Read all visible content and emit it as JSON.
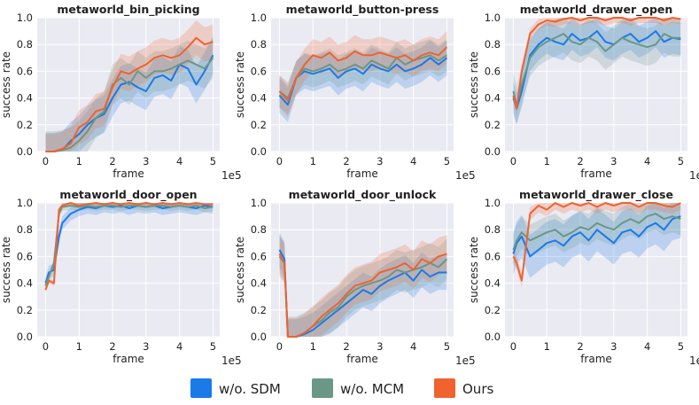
{
  "legend": [
    {
      "name": "w/o. SDM",
      "color": "#1a7ae8"
    },
    {
      "name": "w/o. MCM",
      "color": "#6b9787"
    },
    {
      "name": "Ours",
      "color": "#f0622e"
    }
  ],
  "chart_data": [
    {
      "type": "line",
      "title": "metaworld_bin_picking",
      "xlabel": "frame",
      "ylabel": "success rate",
      "x_multiplier_label": "1e5",
      "xlim": [
        -0.25,
        5.2
      ],
      "ylim": [
        0,
        1.0
      ],
      "xticks": [
        "0",
        "1",
        "2",
        "3",
        "4",
        "5"
      ],
      "yticks": [
        "0.0",
        "0.2",
        "0.4",
        "0.6",
        "0.8",
        "1.0"
      ],
      "x": [
        0,
        0.25,
        0.5,
        0.75,
        1,
        1.25,
        1.5,
        1.75,
        2,
        2.25,
        2.5,
        2.75,
        3,
        3.25,
        3.5,
        3.75,
        4,
        4.25,
        4.5,
        4.75,
        5
      ],
      "series": [
        {
          "name": "w/o. SDM",
          "values": [
            0,
            0,
            0.01,
            0.08,
            0.13,
            0.2,
            0.25,
            0.28,
            0.4,
            0.5,
            0.52,
            0.48,
            0.45,
            0.55,
            0.57,
            0.53,
            0.65,
            0.62,
            0.5,
            0.6,
            0.72
          ],
          "band": 0.14
        },
        {
          "name": "w/o. MCM",
          "values": [
            0,
            0,
            0.01,
            0.03,
            0.08,
            0.15,
            0.25,
            0.3,
            0.5,
            0.55,
            0.5,
            0.6,
            0.55,
            0.6,
            0.6,
            0.62,
            0.65,
            0.68,
            0.65,
            0.62,
            0.7
          ],
          "band": 0.15
        },
        {
          "name": "Ours",
          "values": [
            0,
            0,
            0.02,
            0.06,
            0.18,
            0.22,
            0.3,
            0.32,
            0.48,
            0.6,
            0.58,
            0.62,
            0.65,
            0.7,
            0.72,
            0.7,
            0.72,
            0.78,
            0.85,
            0.8,
            0.82
          ],
          "band": 0.13
        }
      ]
    },
    {
      "type": "line",
      "title": "metaworld_button-press",
      "xlabel": "frame",
      "ylabel": "success rate",
      "x_multiplier_label": "1e5",
      "xlim": [
        -0.25,
        5.2
      ],
      "ylim": [
        0,
        1.0
      ],
      "xticks": [
        "0",
        "1",
        "2",
        "3",
        "4",
        "5"
      ],
      "yticks": [
        "0.0",
        "0.2",
        "0.4",
        "0.6",
        "0.8",
        "1.0"
      ],
      "x": [
        0,
        0.25,
        0.5,
        0.75,
        1,
        1.25,
        1.5,
        1.75,
        2,
        2.25,
        2.5,
        2.75,
        3,
        3.25,
        3.5,
        3.75,
        4,
        4.25,
        4.5,
        4.75,
        5
      ],
      "series": [
        {
          "name": "w/o. SDM",
          "values": [
            0.42,
            0.35,
            0.55,
            0.6,
            0.58,
            0.6,
            0.62,
            0.55,
            0.6,
            0.62,
            0.58,
            0.65,
            0.62,
            0.6,
            0.65,
            0.6,
            0.62,
            0.65,
            0.7,
            0.65,
            0.7
          ],
          "band": 0.13
        },
        {
          "name": "w/o. MCM",
          "values": [
            0.45,
            0.4,
            0.55,
            0.62,
            0.6,
            0.62,
            0.65,
            0.6,
            0.62,
            0.65,
            0.62,
            0.68,
            0.65,
            0.62,
            0.7,
            0.65,
            0.68,
            0.7,
            0.72,
            0.68,
            0.72
          ],
          "band": 0.12
        },
        {
          "name": "Ours",
          "values": [
            0.45,
            0.38,
            0.55,
            0.65,
            0.72,
            0.7,
            0.74,
            0.68,
            0.7,
            0.75,
            0.72,
            0.72,
            0.74,
            0.72,
            0.7,
            0.72,
            0.68,
            0.72,
            0.74,
            0.72,
            0.78
          ],
          "band": 0.12
        }
      ]
    },
    {
      "type": "line",
      "title": "metaworld_drawer_open",
      "xlabel": "frame",
      "ylabel": "success rate",
      "x_multiplier_label": "1e5",
      "xlim": [
        -0.25,
        5.2
      ],
      "ylim": [
        0,
        1.0
      ],
      "xticks": [
        "0",
        "1",
        "2",
        "3",
        "4",
        "5"
      ],
      "yticks": [
        "0.0",
        "0.2",
        "0.4",
        "0.6",
        "0.8",
        "1.0"
      ],
      "x": [
        0,
        0.1,
        0.25,
        0.5,
        0.75,
        1,
        1.25,
        1.5,
        1.75,
        2,
        2.25,
        2.5,
        2.75,
        3,
        3.25,
        3.5,
        3.75,
        4,
        4.25,
        4.5,
        4.75,
        5
      ],
      "series": [
        {
          "name": "w/o. SDM",
          "values": [
            0.4,
            0.32,
            0.45,
            0.72,
            0.8,
            0.85,
            0.82,
            0.8,
            0.88,
            0.83,
            0.85,
            0.9,
            0.82,
            0.8,
            0.85,
            0.88,
            0.82,
            0.85,
            0.9,
            0.82,
            0.85,
            0.84
          ],
          "band": 0.12
        },
        {
          "name": "w/o. MCM",
          "values": [
            0.45,
            0.35,
            0.5,
            0.7,
            0.78,
            0.82,
            0.85,
            0.88,
            0.82,
            0.8,
            0.85,
            0.82,
            0.75,
            0.8,
            0.85,
            0.82,
            0.8,
            0.78,
            0.8,
            0.88,
            0.85,
            0.85
          ],
          "band": 0.14
        },
        {
          "name": "Ours",
          "values": [
            0.42,
            0.32,
            0.6,
            0.88,
            0.95,
            0.98,
            0.97,
            0.99,
            1.0,
            0.98,
            1.0,
            1.0,
            0.98,
            1.0,
            1.0,
            0.98,
            1.0,
            1.0,
            1.0,
            0.98,
            1.0,
            0.99
          ],
          "band": 0.04
        }
      ]
    },
    {
      "type": "line",
      "title": "metaworld_door_open",
      "xlabel": "frame",
      "ylabel": "success rate",
      "x_multiplier_label": "1e5",
      "xlim": [
        -0.25,
        5.2
      ],
      "ylim": [
        0,
        1.0
      ],
      "xticks": [
        "0",
        "1",
        "2",
        "3",
        "4",
        "5"
      ],
      "yticks": [
        "0.0",
        "0.2",
        "0.4",
        "0.6",
        "0.8",
        "1.0"
      ],
      "x": [
        0,
        0.1,
        0.25,
        0.4,
        0.5,
        0.75,
        1,
        1.25,
        1.5,
        1.75,
        2,
        2.25,
        2.5,
        2.75,
        3,
        3.25,
        3.5,
        3.75,
        4,
        4.25,
        4.5,
        4.75,
        5
      ],
      "series": [
        {
          "name": "w/o. SDM",
          "values": [
            0.4,
            0.48,
            0.5,
            0.75,
            0.85,
            0.92,
            0.95,
            0.97,
            0.96,
            0.98,
            0.97,
            0.98,
            0.96,
            0.98,
            0.97,
            0.98,
            0.96,
            0.97,
            0.98,
            0.97,
            0.96,
            0.98,
            0.97
          ],
          "band": 0.05
        },
        {
          "name": "w/o. MCM",
          "values": [
            0.38,
            0.45,
            0.55,
            0.92,
            0.97,
            0.98,
            0.97,
            0.98,
            0.97,
            0.98,
            0.98,
            0.97,
            0.98,
            0.98,
            0.97,
            0.98,
            0.98,
            0.97,
            0.98,
            0.97,
            0.98,
            0.96,
            0.97
          ],
          "band": 0.03
        },
        {
          "name": "Ours",
          "values": [
            0.35,
            0.42,
            0.4,
            0.95,
            0.98,
            1.0,
            0.98,
            0.99,
            1.0,
            0.99,
            1.0,
            0.99,
            1.0,
            0.99,
            1.0,
            0.99,
            1.0,
            0.99,
            1.0,
            0.99,
            1.0,
            0.99,
            0.99
          ],
          "band": 0.02
        }
      ]
    },
    {
      "type": "line",
      "title": "metaworld_door_unlock",
      "xlabel": "frame",
      "ylabel": "success rate",
      "x_multiplier_label": "1e5",
      "xlim": [
        -0.25,
        5.2
      ],
      "ylim": [
        0,
        1.0
      ],
      "xticks": [
        "0",
        "1",
        "2",
        "3",
        "4",
        "5"
      ],
      "yticks": [
        "0.0",
        "0.2",
        "0.4",
        "0.6",
        "0.8",
        "1.0"
      ],
      "x": [
        0,
        0.15,
        0.25,
        0.5,
        0.75,
        1,
        1.25,
        1.5,
        1.75,
        2,
        2.25,
        2.5,
        2.75,
        3,
        3.25,
        3.5,
        3.75,
        4,
        4.25,
        4.5,
        4.75,
        5
      ],
      "series": [
        {
          "name": "w/o. SDM",
          "values": [
            0.65,
            0.58,
            0,
            0,
            0.02,
            0.05,
            0.1,
            0.15,
            0.2,
            0.25,
            0.3,
            0.35,
            0.32,
            0.38,
            0.42,
            0.45,
            0.48,
            0.42,
            0.5,
            0.45,
            0.48,
            0.48
          ],
          "band": 0.13
        },
        {
          "name": "w/o. MCM",
          "values": [
            0.6,
            0.55,
            0,
            0,
            0.03,
            0.08,
            0.12,
            0.18,
            0.22,
            0.3,
            0.35,
            0.38,
            0.4,
            0.42,
            0.45,
            0.5,
            0.48,
            0.5,
            0.52,
            0.55,
            0.52,
            0.58
          ],
          "band": 0.15
        },
        {
          "name": "Ours",
          "values": [
            0.62,
            0.55,
            0,
            0,
            0.03,
            0.08,
            0.15,
            0.2,
            0.25,
            0.32,
            0.38,
            0.4,
            0.42,
            0.48,
            0.5,
            0.52,
            0.55,
            0.5,
            0.58,
            0.55,
            0.6,
            0.62
          ],
          "band": 0.14
        }
      ]
    },
    {
      "type": "line",
      "title": "metaworld_drawer_close",
      "xlabel": "frame",
      "ylabel": "success rate",
      "x_multiplier_label": "1e5",
      "xlim": [
        -0.25,
        5.2
      ],
      "ylim": [
        0,
        1.0
      ],
      "xticks": [
        "0",
        "1",
        "2",
        "3",
        "4",
        "5"
      ],
      "yticks": [
        "0.0",
        "0.2",
        "0.4",
        "0.6",
        "0.8",
        "1.0"
      ],
      "x": [
        0,
        0.1,
        0.25,
        0.5,
        0.75,
        1,
        1.25,
        1.5,
        1.75,
        2,
        2.25,
        2.5,
        2.75,
        3,
        3.25,
        3.5,
        3.75,
        4,
        4.25,
        4.5,
        4.75,
        5
      ],
      "series": [
        {
          "name": "w/o. SDM",
          "values": [
            0.62,
            0.7,
            0.75,
            0.6,
            0.65,
            0.7,
            0.72,
            0.68,
            0.75,
            0.78,
            0.72,
            0.8,
            0.75,
            0.7,
            0.78,
            0.8,
            0.75,
            0.82,
            0.85,
            0.8,
            0.88,
            0.9
          ],
          "band": 0.16
        },
        {
          "name": "w/o. MCM",
          "values": [
            0.65,
            0.72,
            0.78,
            0.72,
            0.75,
            0.78,
            0.8,
            0.75,
            0.78,
            0.82,
            0.8,
            0.85,
            0.82,
            0.8,
            0.85,
            0.88,
            0.85,
            0.9,
            0.92,
            0.88,
            0.9,
            0.88
          ],
          "band": 0.12
        },
        {
          "name": "Ours",
          "values": [
            0.6,
            0.55,
            0.42,
            0.92,
            0.98,
            0.95,
            1.0,
            0.97,
            1.0,
            0.98,
            1.0,
            0.97,
            1.0,
            0.98,
            1.0,
            1.0,
            0.97,
            1.0,
            1.0,
            0.98,
            0.97,
            1.0
          ],
          "band": 0.05
        }
      ]
    }
  ]
}
